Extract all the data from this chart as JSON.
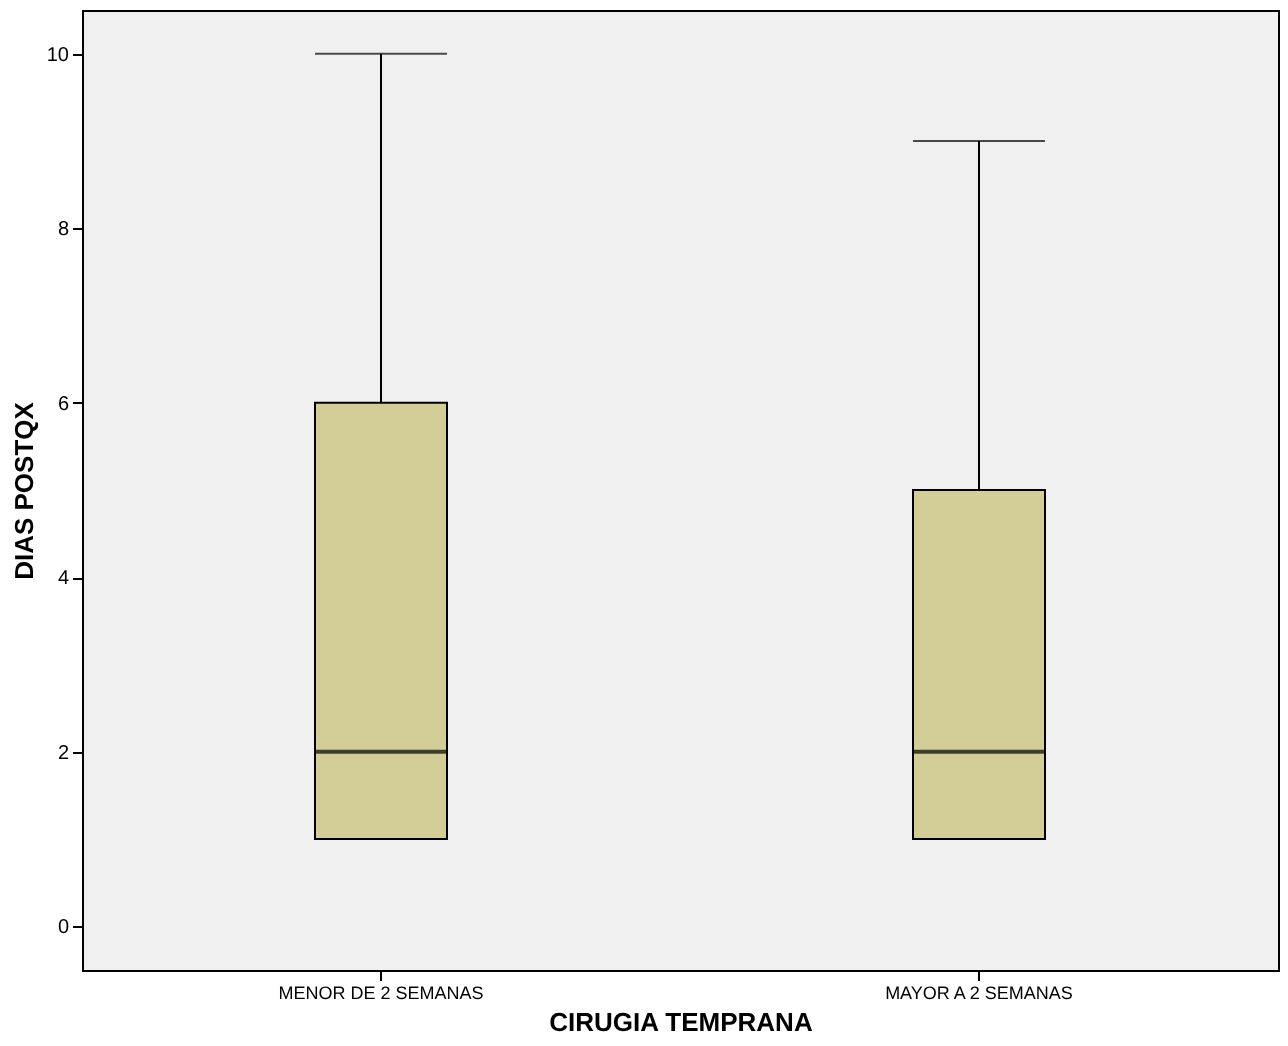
{
  "chart_data": {
    "type": "box",
    "xlabel": "CIRUGIA TEMPRANA",
    "ylabel": "DIAS POSTQX",
    "categories": [
      "MENOR DE 2 SEMANAS",
      "MAYOR A 2 SEMANAS"
    ],
    "boxes": [
      {
        "low": 1,
        "q1": 1,
        "median": 2,
        "q3": 6,
        "high": 10
      },
      {
        "low": 1,
        "q1": 1,
        "median": 2,
        "q3": 5,
        "high": 9
      }
    ],
    "colors": [
      "#d3ce98",
      "#d3ce98"
    ],
    "ylim": [
      -0.5,
      10.5
    ],
    "yticks": [
      0,
      2,
      4,
      6,
      8,
      10
    ],
    "grid": false
  }
}
